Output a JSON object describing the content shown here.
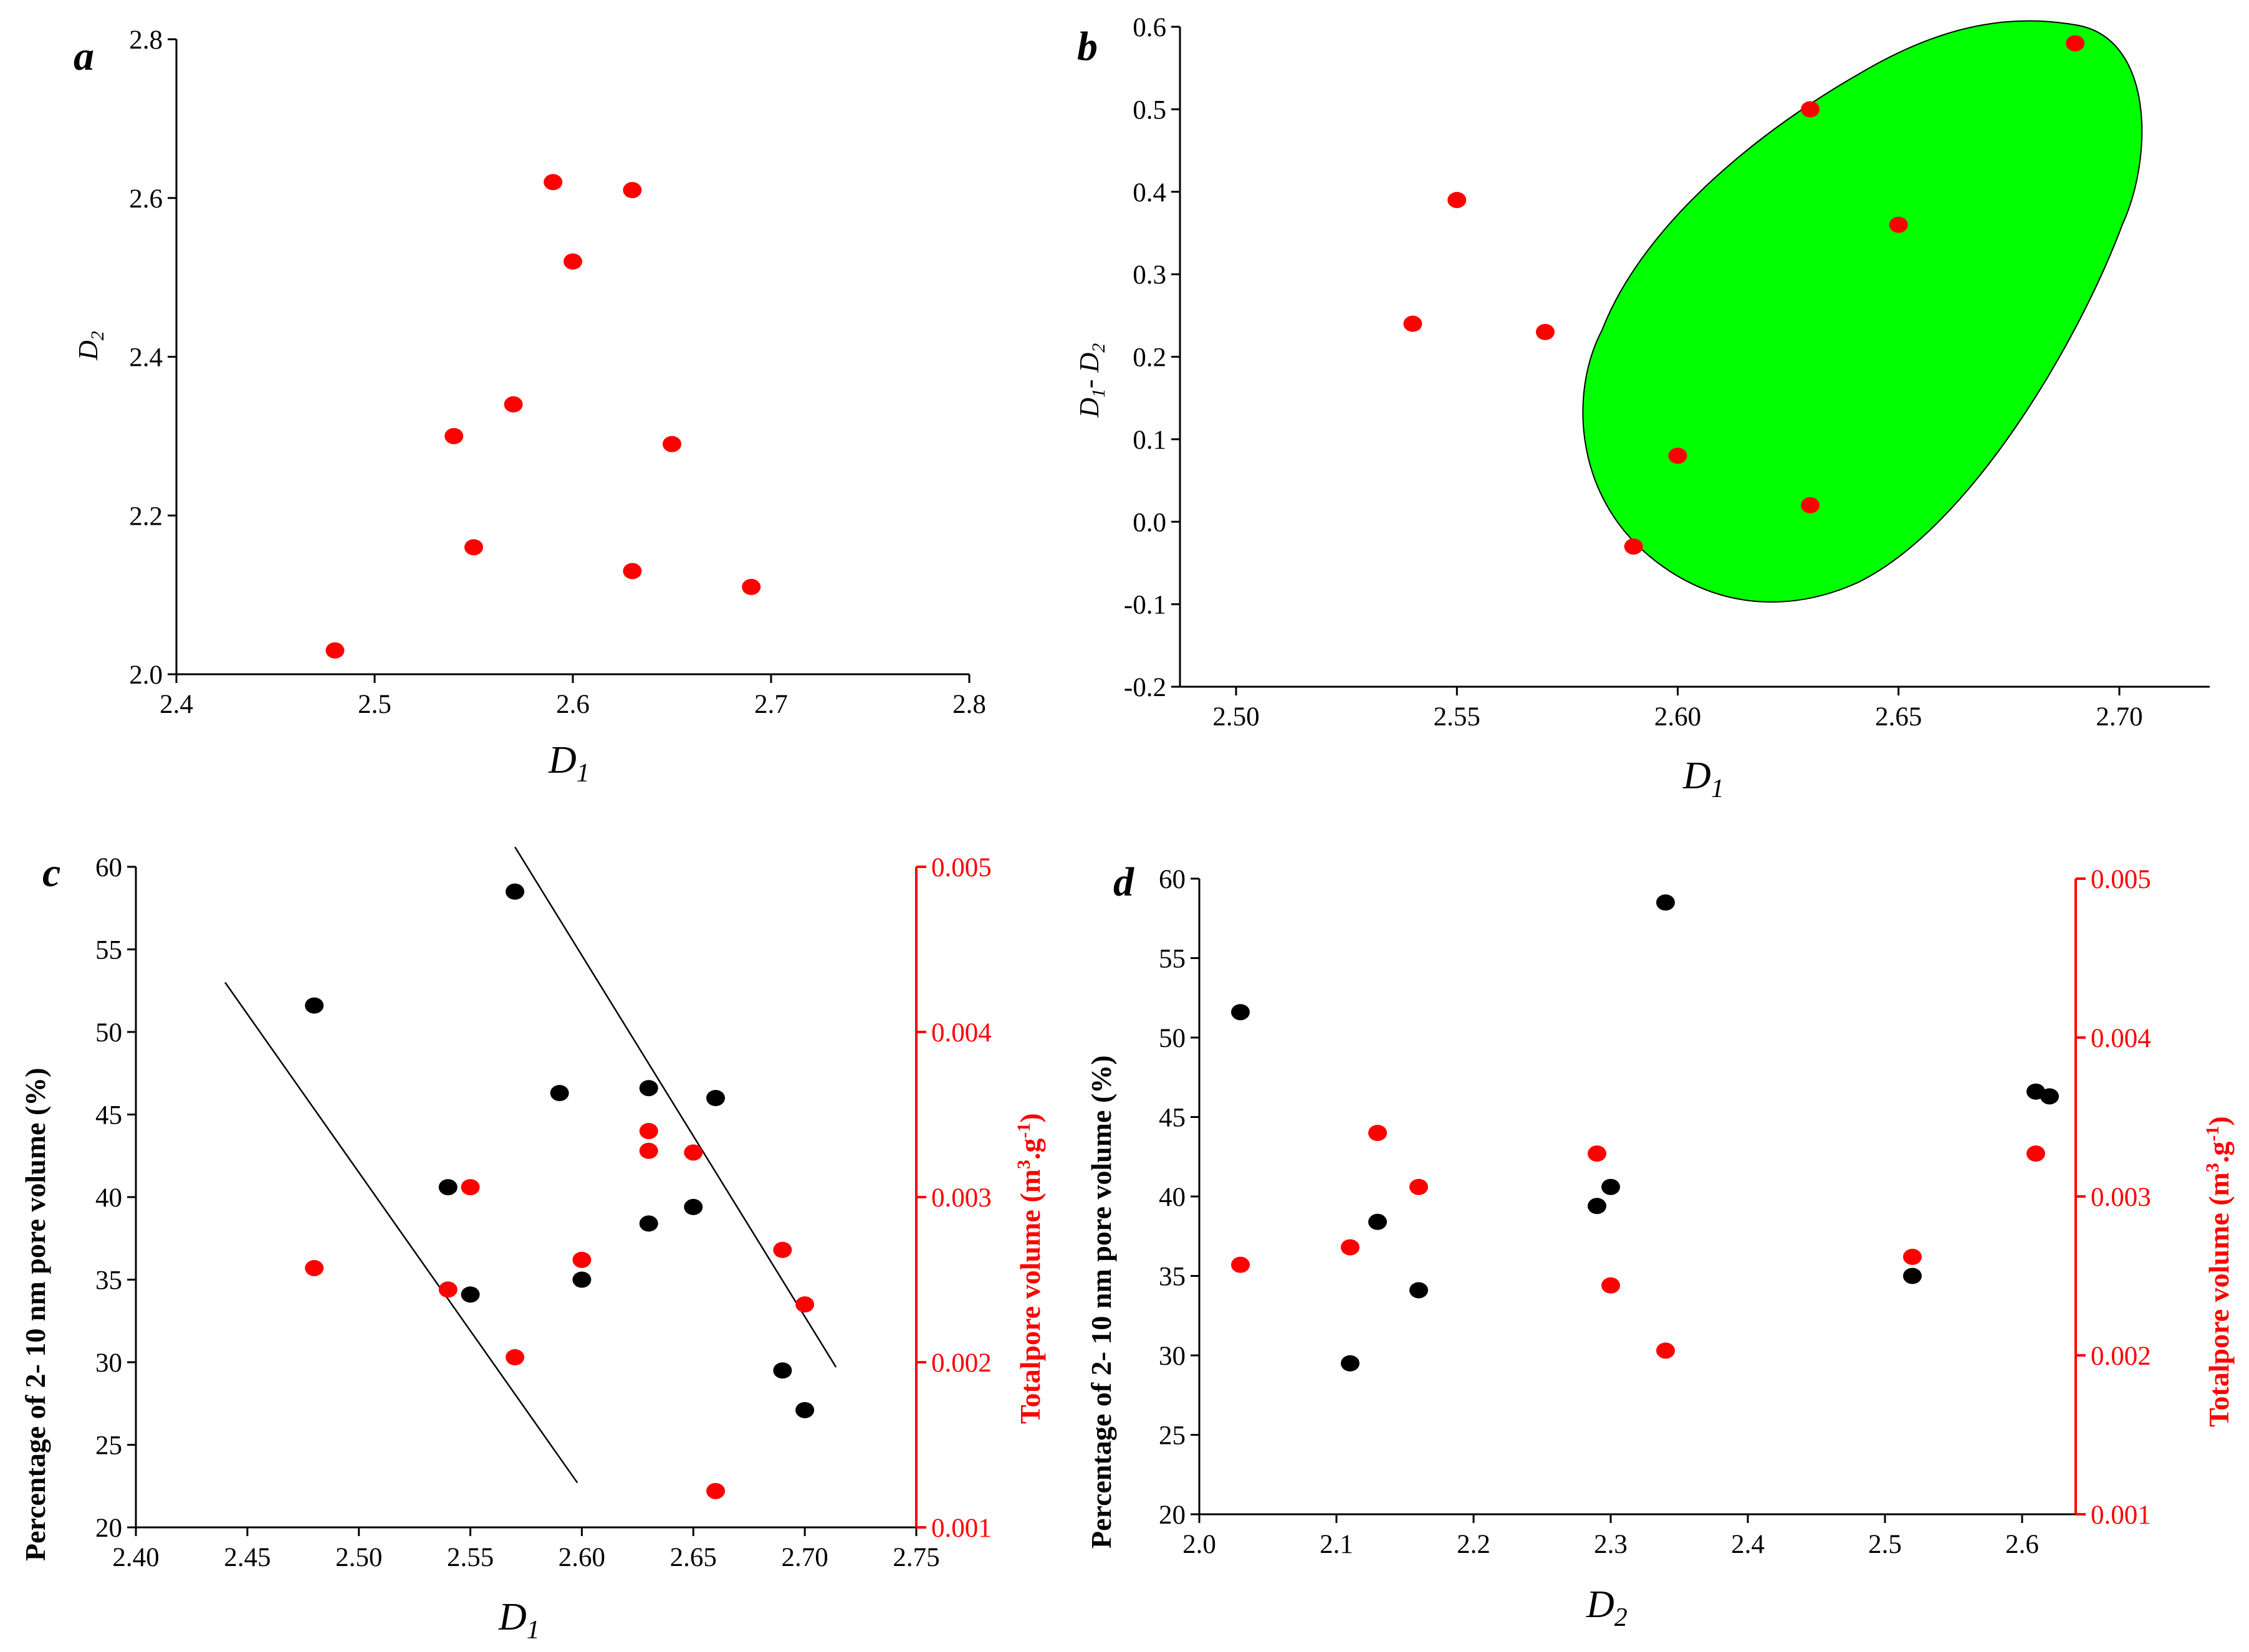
{
  "colors": {
    "red": "#ff0000",
    "black": "#000000",
    "ellipse_fill": "#00ff00"
  },
  "chart_data": [
    {
      "panel": "a",
      "type": "scatter",
      "xlabel": "D1",
      "ylabel": "D2",
      "xlim": [
        2.4,
        2.8
      ],
      "ylim": [
        2.0,
        2.8
      ],
      "x_ticks": [
        "2.4",
        "2.5",
        "2.6",
        "2.7",
        "2.8"
      ],
      "y_ticks": [
        "2.0",
        "2.2",
        "2.4",
        "2.6",
        "2.8"
      ],
      "series": [
        {
          "color": "#ff0000",
          "points": [
            [
              2.48,
              2.03
            ],
            [
              2.54,
              2.3
            ],
            [
              2.55,
              2.16
            ],
            [
              2.57,
              2.34
            ],
            [
              2.59,
              2.62
            ],
            [
              2.6,
              2.52
            ],
            [
              2.63,
              2.61
            ],
            [
              2.63,
              2.13
            ],
            [
              2.65,
              2.29
            ],
            [
              2.69,
              2.11
            ]
          ]
        }
      ]
    },
    {
      "panel": "b",
      "type": "scatter",
      "xlabel": "D1",
      "ylabel": "D1- D2",
      "xlim": [
        2.5,
        2.72
      ],
      "ylim": [
        -0.2,
        0.6
      ],
      "x_ticks": [
        "2.50",
        "2.55",
        "2.60",
        "2.65",
        "2.70"
      ],
      "y_ticks": [
        "-0.2",
        "-0.1",
        "0.0",
        "0.1",
        "0.2",
        "0.3",
        "0.4",
        "0.5",
        "0.6"
      ],
      "series": [
        {
          "color": "#ff0000",
          "points": [
            [
              2.54,
              0.24
            ],
            [
              2.55,
              0.39
            ],
            [
              2.57,
              0.23
            ],
            [
              2.59,
              -0.03
            ],
            [
              2.6,
              0.08
            ],
            [
              2.63,
              0.5
            ],
            [
              2.63,
              0.02
            ],
            [
              2.65,
              0.36
            ],
            [
              2.69,
              0.58
            ]
          ]
        }
      ],
      "highlight": "green ellipse enclosing the six points with D1 ≥ 2.59"
    },
    {
      "panel": "c",
      "type": "scatter",
      "xlabel": "D1",
      "ylabel": "Percentage of 2- 10 nm pore volume (%)",
      "ylabel_right": "Totalpore volume (m3.g-1)",
      "xlim": [
        2.4,
        2.75
      ],
      "ylim": [
        20,
        60
      ],
      "ylim_right": [
        0.001,
        0.005
      ],
      "x_ticks": [
        "2.40",
        "2.45",
        "2.50",
        "2.55",
        "2.60",
        "2.65",
        "2.70",
        "2.75"
      ],
      "y_ticks": [
        "20",
        "25",
        "30",
        "35",
        "40",
        "45",
        "50",
        "55",
        "60"
      ],
      "y_ticks_right": [
        "0.001",
        "0.002",
        "0.003",
        "0.004",
        "0.005"
      ],
      "series": [
        {
          "color": "#000000",
          "axis": "left",
          "points": [
            [
              2.48,
              51.6
            ],
            [
              2.54,
              40.6
            ],
            [
              2.55,
              34.1
            ],
            [
              2.57,
              58.5
            ],
            [
              2.59,
              46.3
            ],
            [
              2.6,
              35.0
            ],
            [
              2.63,
              46.6
            ],
            [
              2.63,
              38.4
            ],
            [
              2.65,
              39.4
            ],
            [
              2.66,
              46.0
            ],
            [
              2.69,
              29.5
            ],
            [
              2.7,
              27.1
            ]
          ]
        },
        {
          "color": "#ff0000",
          "axis": "right",
          "points": [
            [
              2.48,
              0.00257
            ],
            [
              2.54,
              0.00244
            ],
            [
              2.55,
              0.00306
            ],
            [
              2.57,
              0.00203
            ],
            [
              2.6,
              0.00262
            ],
            [
              2.63,
              0.0034
            ],
            [
              2.63,
              0.00328
            ],
            [
              2.65,
              0.00327
            ],
            [
              2.66,
              0.00122
            ],
            [
              2.69,
              0.00268
            ],
            [
              2.7,
              0.00235
            ]
          ]
        }
      ],
      "trend_lines": [
        {
          "x": [
            2.44,
            2.598
          ],
          "y": [
            53.0,
            22.7
          ]
        },
        {
          "x": [
            2.57,
            2.714
          ],
          "y": [
            61.2,
            29.7
          ]
        }
      ]
    },
    {
      "panel": "d",
      "type": "scatter",
      "xlabel": "D2",
      "ylabel": "Percentage of 2- 10 nm pore volume (%)",
      "ylabel_right": "Totalpore volume (m3.g-1)",
      "xlim": [
        2.0,
        2.64
      ],
      "ylim": [
        20,
        60
      ],
      "ylim_right": [
        0.001,
        0.005
      ],
      "x_ticks": [
        "2.0",
        "2.1",
        "2.2",
        "2.3",
        "2.4",
        "2.5",
        "2.6"
      ],
      "y_ticks": [
        "20",
        "25",
        "30",
        "35",
        "40",
        "45",
        "50",
        "55",
        "60"
      ],
      "y_ticks_right": [
        "0.001",
        "0.002",
        "0.003",
        "0.004",
        "0.005"
      ],
      "series": [
        {
          "color": "#000000",
          "axis": "left",
          "points": [
            [
              2.03,
              51.6
            ],
            [
              2.11,
              29.5
            ],
            [
              2.13,
              38.4
            ],
            [
              2.16,
              34.1
            ],
            [
              2.29,
              39.4
            ],
            [
              2.3,
              40.6
            ],
            [
              2.34,
              58.5
            ],
            [
              2.52,
              35.0
            ],
            [
              2.61,
              46.6
            ],
            [
              2.62,
              46.3
            ]
          ]
        },
        {
          "color": "#ff0000",
          "axis": "right",
          "points": [
            [
              2.03,
              0.00257
            ],
            [
              2.11,
              0.00268
            ],
            [
              2.13,
              0.0034
            ],
            [
              2.16,
              0.00306
            ],
            [
              2.29,
              0.00327
            ],
            [
              2.3,
              0.00244
            ],
            [
              2.34,
              0.00203
            ],
            [
              2.52,
              0.00262
            ],
            [
              2.61,
              0.00327
            ]
          ]
        }
      ]
    }
  ]
}
